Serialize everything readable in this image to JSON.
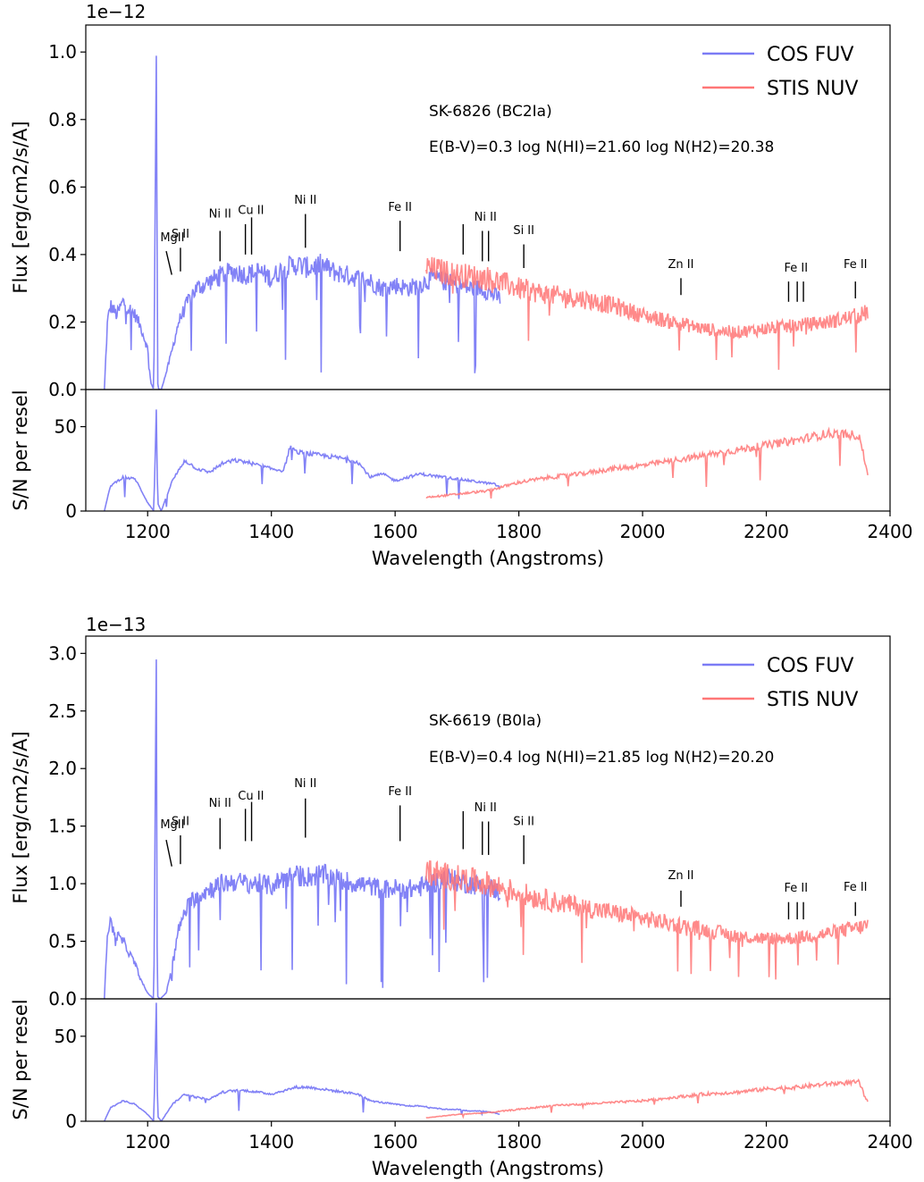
{
  "colors": {
    "cos": "#7b7bf5",
    "stis": "#ff7676"
  },
  "panels": [
    {
      "offset_text": "1e−12",
      "star": "SK-6826 (BC2Ia)",
      "params": "E(B-V)=0.3  log N(HI)=21.60  log N(H2)=20.38",
      "flux_ylabel": "Flux [erg/cm2/s/A]",
      "sn_ylabel": "S/N per resel",
      "xlabel": "Wavelength (Angstroms)",
      "flux_ylim": [
        0,
        1.08
      ],
      "flux_ticks": [
        "0.0",
        "0.2",
        "0.4",
        "0.6",
        "0.8",
        "1.0"
      ],
      "flux_tick_values": [
        0,
        0.2,
        0.4,
        0.6,
        0.8,
        1.0
      ],
      "sn_ylim": [
        0,
        72
      ],
      "sn_ticks": [
        "0",
        "50"
      ],
      "sn_tick_values": [
        0,
        50
      ],
      "xlim": [
        1100,
        2400
      ],
      "x_ticks": [
        "1200",
        "1400",
        "1600",
        "1800",
        "2000",
        "2200",
        "2400"
      ],
      "x_tick_values": [
        1200,
        1400,
        1600,
        1800,
        2000,
        2200,
        2400
      ],
      "legend": [
        "COS FUV",
        "STIS NUV"
      ],
      "lines": [
        {
          "label": "MgII",
          "x": 1239,
          "y0": 0.34,
          "y1": 0.41,
          "lx": 1240,
          "ly": 0.44
        },
        {
          "label": "S II",
          "x": 1253,
          "y0": 0.35,
          "y1": 0.42,
          "lx": 1253,
          "ly": 0.45
        },
        {
          "label": "Ni II",
          "x": 1317,
          "y0": 0.38,
          "y1": 0.47,
          "lx": 1317,
          "ly": 0.51
        },
        {
          "label": "Cu II",
          "x": 1358,
          "y0": 0.4,
          "y1": 0.49,
          "lx": 1367,
          "ly": 0.52
        },
        {
          "label": "",
          "x": 1368,
          "y0": 0.4,
          "y1": 0.51,
          "lx": 0,
          "ly": 0
        },
        {
          "label": "Ni II",
          "x": 1455,
          "y0": 0.42,
          "y1": 0.52,
          "lx": 1455,
          "ly": 0.55
        },
        {
          "label": "Fe II",
          "x": 1608,
          "y0": 0.41,
          "y1": 0.5,
          "lx": 1608,
          "ly": 0.53
        },
        {
          "label": "",
          "x": 1710,
          "y0": 0.4,
          "y1": 0.49,
          "lx": 0,
          "ly": 0
        },
        {
          "label": "Ni II",
          "x": 1741,
          "y0": 0.38,
          "y1": 0.47,
          "lx": 1746,
          "ly": 0.5
        },
        {
          "label": "",
          "x": 1751,
          "y0": 0.38,
          "y1": 0.47,
          "lx": 0,
          "ly": 0
        },
        {
          "label": "Si II",
          "x": 1808,
          "y0": 0.36,
          "y1": 0.43,
          "lx": 1808,
          "ly": 0.46
        },
        {
          "label": "Zn II",
          "x": 2062,
          "y0": 0.28,
          "y1": 0.33,
          "lx": 2062,
          "ly": 0.36
        },
        {
          "label": "Fe II",
          "x": 2236,
          "y0": 0.26,
          "y1": 0.32,
          "lx": 2248,
          "ly": 0.35
        },
        {
          "label": "",
          "x": 2250,
          "y0": 0.26,
          "y1": 0.32,
          "lx": 0,
          "ly": 0
        },
        {
          "label": "",
          "x": 2260,
          "y0": 0.26,
          "y1": 0.32,
          "lx": 0,
          "ly": 0
        },
        {
          "label": "Fe II",
          "x": 2344,
          "y0": 0.27,
          "y1": 0.32,
          "lx": 2344,
          "ly": 0.36
        }
      ]
    },
    {
      "offset_text": "1e−13",
      "star": "SK-6619 (B0Ia)",
      "params": "E(B-V)=0.4  log N(HI)=21.85  log N(H2)=20.20",
      "flux_ylabel": "Flux [erg/cm2/s/A]",
      "sn_ylabel": "S/N per resel",
      "xlabel": "Wavelength (Angstroms)",
      "flux_ylim": [
        0,
        3.15
      ],
      "flux_ticks": [
        "0.0",
        "0.5",
        "1.0",
        "1.5",
        "2.0",
        "2.5",
        "3.0"
      ],
      "flux_tick_values": [
        0,
        0.5,
        1.0,
        1.5,
        2.0,
        2.5,
        3.0
      ],
      "sn_ylim": [
        0,
        72
      ],
      "sn_ticks": [
        "0",
        "50"
      ],
      "sn_tick_values": [
        0,
        50
      ],
      "xlim": [
        1100,
        2400
      ],
      "x_ticks": [
        "1200",
        "1400",
        "1600",
        "1800",
        "2000",
        "2200",
        "2400"
      ],
      "x_tick_values": [
        1200,
        1400,
        1600,
        1800,
        2000,
        2200,
        2400
      ],
      "legend": [
        "COS FUV",
        "STIS NUV"
      ],
      "lines": [
        {
          "label": "MgII",
          "x": 1239,
          "y0": 1.15,
          "y1": 1.38,
          "lx": 1240,
          "ly": 1.48
        },
        {
          "label": "S II",
          "x": 1253,
          "y0": 1.17,
          "y1": 1.42,
          "lx": 1253,
          "ly": 1.51
        },
        {
          "label": "Ni II",
          "x": 1317,
          "y0": 1.3,
          "y1": 1.57,
          "lx": 1317,
          "ly": 1.67
        },
        {
          "label": "Cu II",
          "x": 1358,
          "y0": 1.37,
          "y1": 1.65,
          "lx": 1367,
          "ly": 1.73
        },
        {
          "label": "",
          "x": 1368,
          "y0": 1.37,
          "y1": 1.71,
          "lx": 0,
          "ly": 0
        },
        {
          "label": "Ni II",
          "x": 1455,
          "y0": 1.4,
          "y1": 1.74,
          "lx": 1455,
          "ly": 1.84
        },
        {
          "label": "Fe II",
          "x": 1608,
          "y0": 1.37,
          "y1": 1.68,
          "lx": 1608,
          "ly": 1.77
        },
        {
          "label": "",
          "x": 1710,
          "y0": 1.3,
          "y1": 1.63,
          "lx": 0,
          "ly": 0
        },
        {
          "label": "Ni II",
          "x": 1741,
          "y0": 1.25,
          "y1": 1.54,
          "lx": 1746,
          "ly": 1.63
        },
        {
          "label": "",
          "x": 1751,
          "y0": 1.25,
          "y1": 1.54,
          "lx": 0,
          "ly": 0
        },
        {
          "label": "Si II",
          "x": 1808,
          "y0": 1.17,
          "y1": 1.42,
          "lx": 1808,
          "ly": 1.51
        },
        {
          "label": "Zn II",
          "x": 2062,
          "y0": 0.8,
          "y1": 0.94,
          "lx": 2062,
          "ly": 1.04
        },
        {
          "label": "Fe II",
          "x": 2236,
          "y0": 0.69,
          "y1": 0.84,
          "lx": 2248,
          "ly": 0.93
        },
        {
          "label": "",
          "x": 2250,
          "y0": 0.69,
          "y1": 0.84,
          "lx": 0,
          "ly": 0
        },
        {
          "label": "",
          "x": 2260,
          "y0": 0.69,
          "y1": 0.84,
          "lx": 0,
          "ly": 0
        },
        {
          "label": "Fe II",
          "x": 2344,
          "y0": 0.72,
          "y1": 0.84,
          "lx": 2344,
          "ly": 0.94
        }
      ]
    }
  ],
  "chart_data": [
    {
      "type": "line",
      "title": "SK-6826 (BC2Ia)",
      "xlabel": "Wavelength (Angstroms)",
      "ylabel": "Flux [erg/cm2/s/A]",
      "y_scale_factor": "1e-12",
      "xlim": [
        1100,
        2400
      ],
      "ylim": [
        0,
        1.08
      ],
      "legend_position": "top-right",
      "series": [
        {
          "name": "COS FUV",
          "x": [
            1130,
            1135,
            1140,
            1150,
            1160,
            1170,
            1180,
            1190,
            1200,
            1205,
            1210,
            1214,
            1216,
            1218,
            1222,
            1230,
            1240,
            1250,
            1260,
            1270,
            1280,
            1300,
            1320,
            1340,
            1360,
            1380,
            1400,
            1420,
            1440,
            1460,
            1480,
            1500,
            1520,
            1540,
            1560,
            1580,
            1600,
            1620,
            1640,
            1660,
            1680,
            1700,
            1720,
            1740,
            1760,
            1770
          ],
          "y": [
            0.0,
            0.2,
            0.25,
            0.22,
            0.26,
            0.24,
            0.22,
            0.18,
            0.12,
            0.02,
            0.0,
            1.02,
            0.02,
            0.0,
            0.0,
            0.05,
            0.12,
            0.2,
            0.24,
            0.28,
            0.3,
            0.32,
            0.34,
            0.35,
            0.34,
            0.35,
            0.33,
            0.36,
            0.37,
            0.36,
            0.37,
            0.35,
            0.34,
            0.33,
            0.32,
            0.3,
            0.31,
            0.3,
            0.31,
            0.33,
            0.32,
            0.31,
            0.3,
            0.3,
            0.28,
            0.27
          ]
        },
        {
          "name": "STIS NUV",
          "x": [
            1650,
            1700,
            1750,
            1800,
            1850,
            1900,
            1950,
            2000,
            2050,
            2100,
            2150,
            2200,
            2250,
            2300,
            2350,
            2365
          ],
          "y": [
            0.36,
            0.34,
            0.33,
            0.3,
            0.28,
            0.27,
            0.25,
            0.22,
            0.2,
            0.18,
            0.17,
            0.18,
            0.19,
            0.2,
            0.22,
            0.23
          ]
        }
      ]
    },
    {
      "type": "line",
      "xlabel": "Wavelength (Angstroms)",
      "ylabel": "S/N per resel",
      "xlim": [
        1100,
        2400
      ],
      "ylim": [
        0,
        72
      ],
      "series": [
        {
          "name": "COS FUV",
          "x": [
            1130,
            1140,
            1160,
            1180,
            1200,
            1210,
            1214,
            1216,
            1222,
            1240,
            1260,
            1280,
            1300,
            1320,
            1340,
            1360,
            1380,
            1400,
            1420,
            1430,
            1440,
            1460,
            1480,
            1500,
            1520,
            1540,
            1560,
            1580,
            1600,
            1620,
            1640,
            1660,
            1680,
            1700,
            1720,
            1740,
            1760,
            1770
          ],
          "y": [
            0,
            15,
            20,
            19,
            5,
            0,
            60,
            5,
            0,
            18,
            30,
            25,
            23,
            28,
            30,
            29,
            27,
            25,
            24,
            38,
            35,
            34,
            33,
            32,
            31,
            29,
            20,
            22,
            18,
            20,
            22,
            21,
            20,
            19,
            18,
            17,
            16,
            14
          ]
        },
        {
          "name": "STIS NUV",
          "x": [
            1650,
            1700,
            1750,
            1800,
            1850,
            1900,
            1950,
            2000,
            2050,
            2100,
            2150,
            2200,
            2250,
            2300,
            2350,
            2365
          ],
          "y": [
            8,
            10,
            12,
            17,
            20,
            22,
            25,
            27,
            30,
            33,
            36,
            39,
            42,
            46,
            45,
            20
          ]
        }
      ]
    },
    {
      "type": "line",
      "title": "SK-6619 (B0Ia)",
      "xlabel": "Wavelength (Angstroms)",
      "ylabel": "Flux [erg/cm2/s/A]",
      "y_scale_factor": "1e-13",
      "xlim": [
        1100,
        2400
      ],
      "ylim": [
        0,
        3.15
      ],
      "legend_position": "top-right",
      "series": [
        {
          "name": "COS FUV",
          "x": [
            1130,
            1135,
            1140,
            1150,
            1160,
            1170,
            1180,
            1190,
            1200,
            1210,
            1214,
            1216,
            1220,
            1230,
            1240,
            1250,
            1260,
            1270,
            1280,
            1300,
            1320,
            1340,
            1360,
            1380,
            1400,
            1420,
            1440,
            1460,
            1480,
            1500,
            1520,
            1540,
            1560,
            1580,
            1600,
            1620,
            1640,
            1660,
            1680,
            1700,
            1720,
            1740,
            1760,
            1770
          ],
          "y": [
            0.0,
            0.6,
            0.65,
            0.55,
            0.5,
            0.4,
            0.3,
            0.15,
            0.05,
            0.0,
            3.15,
            0.02,
            0.0,
            0.05,
            0.3,
            0.6,
            0.75,
            0.85,
            0.9,
            0.95,
            1.0,
            1.02,
            1.0,
            1.0,
            0.98,
            1.05,
            1.07,
            1.06,
            1.08,
            1.05,
            1.02,
            1.0,
            0.98,
            0.95,
            0.96,
            0.95,
            0.97,
            1.0,
            1.05,
            1.02,
            1.0,
            0.98,
            0.95,
            0.92
          ]
        },
        {
          "name": "STIS NUV",
          "x": [
            1650,
            1700,
            1750,
            1800,
            1850,
            1900,
            1950,
            2000,
            2050,
            2100,
            2150,
            2200,
            2250,
            2300,
            2350,
            2365
          ],
          "y": [
            1.1,
            1.05,
            1.0,
            0.92,
            0.85,
            0.8,
            0.75,
            0.7,
            0.65,
            0.6,
            0.55,
            0.52,
            0.53,
            0.57,
            0.62,
            0.64
          ]
        }
      ]
    },
    {
      "type": "line",
      "xlabel": "Wavelength (Angstroms)",
      "ylabel": "S/N per resel",
      "xlim": [
        1100,
        2400
      ],
      "ylim": [
        0,
        72
      ],
      "series": [
        {
          "name": "COS FUV",
          "x": [
            1130,
            1140,
            1160,
            1180,
            1200,
            1210,
            1214,
            1216,
            1222,
            1240,
            1260,
            1280,
            1300,
            1320,
            1340,
            1360,
            1380,
            1400,
            1420,
            1440,
            1460,
            1480,
            1500,
            1520,
            1540,
            1560,
            1580,
            1600,
            1620,
            1640,
            1660,
            1680,
            1700,
            1720,
            1740,
            1760,
            1770
          ],
          "y": [
            0,
            8,
            12,
            10,
            4,
            0,
            70,
            3,
            0,
            10,
            16,
            14,
            13,
            17,
            18,
            18,
            17,
            16,
            18,
            20,
            20,
            19,
            18,
            17,
            16,
            12,
            11,
            10,
            9,
            9,
            8,
            7,
            7,
            6,
            6,
            5,
            4
          ]
        },
        {
          "name": "STIS NUV",
          "x": [
            1650,
            1700,
            1750,
            1800,
            1850,
            1900,
            1950,
            2000,
            2050,
            2100,
            2150,
            2200,
            2250,
            2300,
            2350,
            2365
          ],
          "y": [
            2,
            4,
            5,
            7,
            9,
            10,
            11,
            12,
            14,
            16,
            17,
            19,
            20,
            22,
            23,
            10
          ]
        }
      ]
    }
  ]
}
